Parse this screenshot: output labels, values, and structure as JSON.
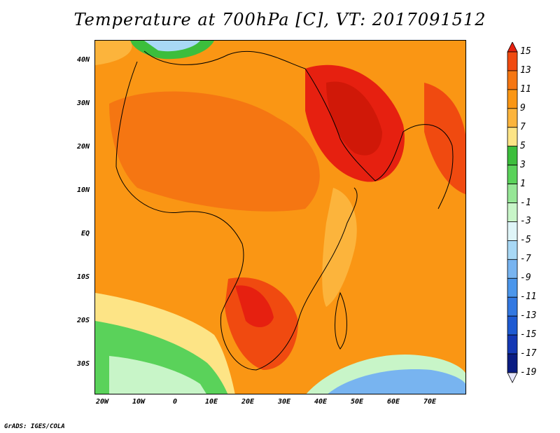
{
  "title": "Temperature at 700hPa [C], VT: 2017091512",
  "footer": "GrADS: IGES/COLA",
  "lat_labels": [
    "40N",
    "30N",
    "20N",
    "10N",
    "EQ",
    "10S",
    "20S",
    "30S"
  ],
  "lon_labels": [
    "20W",
    "10W",
    "0",
    "10E",
    "20E",
    "30E",
    "40E",
    "50E",
    "60E",
    "70E"
  ],
  "colorbar": {
    "labels": [
      "15",
      "13",
      "11",
      "9",
      "7",
      "5",
      "3",
      "1",
      "-1",
      "-3",
      "-5",
      "-7",
      "-9",
      "-11",
      "-13",
      "-15",
      "-17",
      "-19"
    ],
    "colors": [
      "#e62010",
      "#f04a10",
      "#f57612",
      "#fa9614",
      "#fcb43c",
      "#fde486",
      "#3cbe3c",
      "#5ad25a",
      "#96e696",
      "#c8f5c8",
      "#dff5f8",
      "#a8d8f5",
      "#78b4f0",
      "#4b96eb",
      "#3278e1",
      "#1e5ad2",
      "#1438b4",
      "#0a1c82",
      "#e6e6fa"
    ]
  },
  "map": {
    "domain": {
      "lon": [
        -22,
        80
      ],
      "lat": [
        -37,
        45
      ]
    },
    "land_fill": "none",
    "background_color": "#fa9614"
  }
}
